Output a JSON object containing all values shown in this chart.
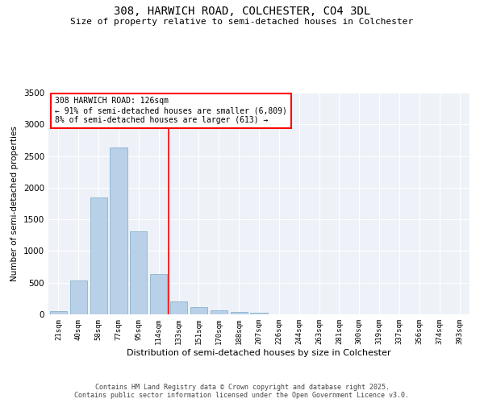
{
  "title_line1": "308, HARWICH ROAD, COLCHESTER, CO4 3DL",
  "title_line2": "Size of property relative to semi-detached houses in Colchester",
  "xlabel": "Distribution of semi-detached houses by size in Colchester",
  "ylabel": "Number of semi-detached properties",
  "categories": [
    "21sqm",
    "40sqm",
    "58sqm",
    "77sqm",
    "95sqm",
    "114sqm",
    "133sqm",
    "151sqm",
    "170sqm",
    "188sqm",
    "207sqm",
    "226sqm",
    "244sqm",
    "263sqm",
    "281sqm",
    "300sqm",
    "319sqm",
    "337sqm",
    "356sqm",
    "374sqm",
    "393sqm"
  ],
  "values": [
    55,
    530,
    1850,
    2640,
    1310,
    640,
    210,
    120,
    65,
    35,
    20,
    5,
    2,
    0,
    0,
    0,
    0,
    0,
    0,
    0,
    0
  ],
  "bar_color": "#b8d0e8",
  "bar_edge_color": "#7aaac8",
  "vline_x": 5.5,
  "vline_color": "red",
  "annotation_title": "308 HARWICH ROAD: 126sqm",
  "annotation_line2": "← 91% of semi-detached houses are smaller (6,809)",
  "annotation_line3": "8% of semi-detached houses are larger (613) →",
  "annotation_box_color": "white",
  "annotation_box_edge": "red",
  "ylim": [
    0,
    3500
  ],
  "yticks": [
    0,
    500,
    1000,
    1500,
    2000,
    2500,
    3000,
    3500
  ],
  "background_color": "#eef2f8",
  "footer_line1": "Contains HM Land Registry data © Crown copyright and database right 2025.",
  "footer_line2": "Contains public sector information licensed under the Open Government Licence v3.0.",
  "figsize": [
    6.0,
    5.0
  ],
  "dpi": 100
}
